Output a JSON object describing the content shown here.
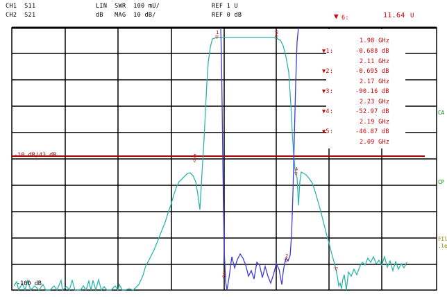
{
  "header": {
    "ch1": "CH1",
    "ch1_param": "S11",
    "ch2": "CH2",
    "ch2_param": "S21",
    "ch1_format": "LIN",
    "ch1_mode": "SWR",
    "ch1_scale": "100 mU/",
    "ch2_format": "dB",
    "ch2_mode": "MAG",
    "ch2_scale": "10 dB/",
    "ref1": "REF 1 U",
    "ref2": "REF 0 dB",
    "active_marker": "6:",
    "active_value": "11.64",
    "active_unit": "U"
  },
  "marker_table": [
    {
      "symbol": "",
      "value": "",
      "freq": "1.98 GHz"
    },
    {
      "symbol": "▼1:",
      "value": "-0.688 dB",
      "freq": "2.11 GHz"
    },
    {
      "symbol": "▼2:",
      "value": "-0.695 dB",
      "freq": "2.17 GHz"
    },
    {
      "symbol": "▼3:",
      "value": "-90.16 dB",
      "freq": "2.23 GHz"
    },
    {
      "symbol": "▼4:",
      "value": "-52.97 dB",
      "freq": "2.19 GHz"
    },
    {
      "symbol": "▼5:",
      "value": "-46.87 dB",
      "freq": "2.09 GHz"
    }
  ],
  "ref_line_label": "-10 dB/42 dB",
  "bottom_ref_label": "-100 dB",
  "side_labels": {
    "ca": "CA",
    "cp": "CP",
    "fil": "FIl",
    "sub": ".le"
  },
  "marker_numbers": [
    "1",
    "2",
    "3",
    "4",
    "5"
  ],
  "colors": {
    "grid": "#000000",
    "ch2_trace": "#2bb5a8",
    "ch1_trace": "#3b3bd6",
    "ref_line": "#aa0000",
    "marker_red": "#cc0000"
  }
}
